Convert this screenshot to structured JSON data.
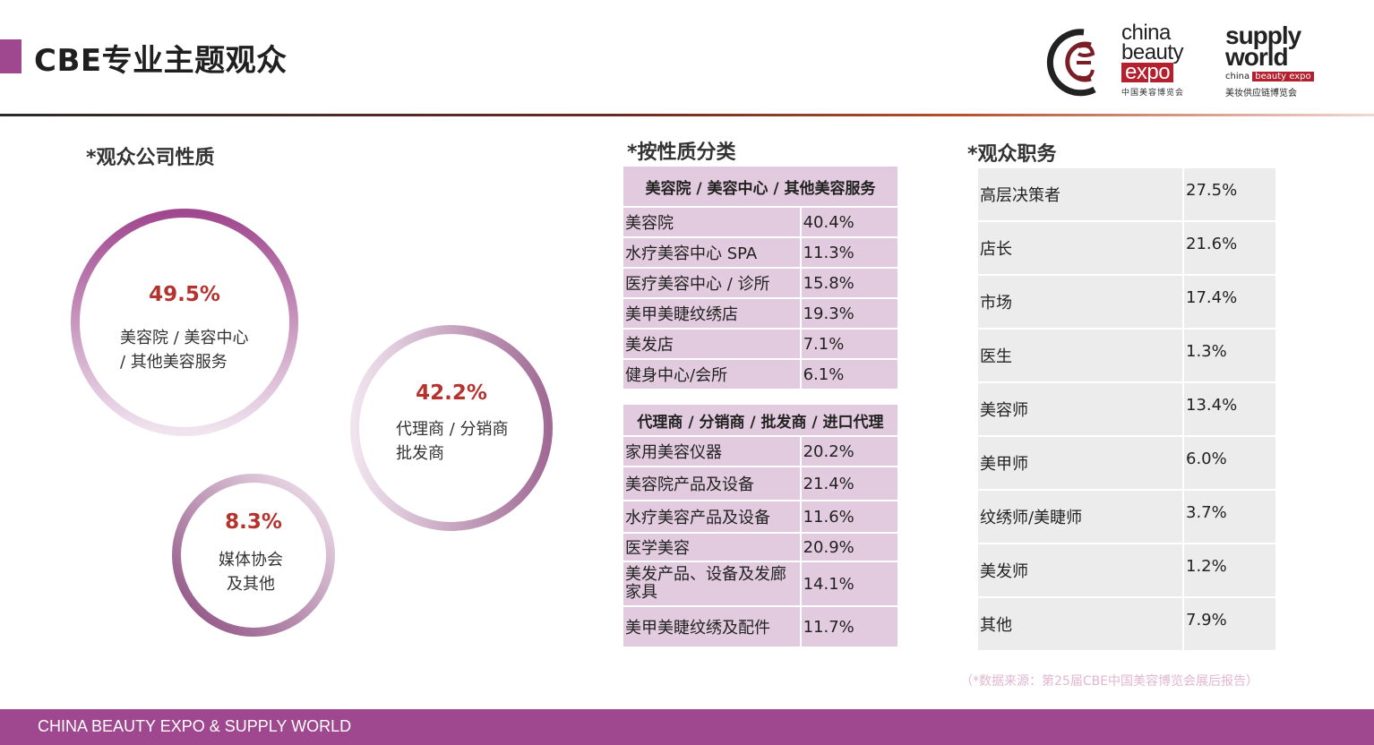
{
  "header": {
    "title": "CBE专业主题观众"
  },
  "logos": {
    "cbe": {
      "line1": "china",
      "line2": "beauty",
      "line3": "expo",
      "cn": "中国美容博览会"
    },
    "supply_world": {
      "line1": "supply",
      "line2": "world",
      "sub_plain": "china ",
      "sub_boxed": "beauty expo",
      "cn": "美妆供应链博览会"
    }
  },
  "company_nature": {
    "heading": "*观众公司性质",
    "items": [
      {
        "percent": "49.5%",
        "label_line1": "美容院 / 美容中心",
        "label_line2": "/ 其他美容服务",
        "value": 49.5
      },
      {
        "percent": "42.2%",
        "label_line1": "代理商 / 分销商",
        "label_line2": "批发商",
        "value": 42.2
      },
      {
        "percent": "8.3%",
        "label_line1": "媒体协会",
        "label_line2": "及其他",
        "value": 8.3
      }
    ]
  },
  "by_nature": {
    "heading": "*按性质分类",
    "group1": {
      "title": "美容院 / 美容中心 / 其他美容服务",
      "rows": [
        {
          "name": "美容院",
          "value": "40.4%"
        },
        {
          "name": "水疗美容中心 SPA",
          "value": "11.3%"
        },
        {
          "name": "医疗美容中心 / 诊所",
          "value": "15.8%"
        },
        {
          "name": "美甲美睫纹绣店",
          "value": "19.3%"
        },
        {
          "name": "美发店",
          "value": "7.1%"
        },
        {
          "name": "健身中心/会所",
          "value": "6.1%"
        }
      ]
    },
    "group2": {
      "title": "代理商 / 分销商 / 批发商 / 进口代理",
      "rows": [
        {
          "name": "家用美容仪器",
          "value": "20.2%"
        },
        {
          "name": "美容院产品及设备",
          "value": "21.4%"
        },
        {
          "name": "水疗美容产品及设备",
          "value": "11.6%"
        },
        {
          "name": "医学美容",
          "value": "20.9%"
        },
        {
          "name": "美发产品、设备及发廊",
          "name2": "家具",
          "value": "14.1%"
        },
        {
          "name": "美甲美睫纹绣及配件",
          "value": "11.7%"
        }
      ]
    }
  },
  "job_roles": {
    "heading": "*观众职务",
    "rows": [
      {
        "name": "高层决策者",
        "value": "27.5%"
      },
      {
        "name": "店长",
        "value": "21.6%"
      },
      {
        "name": "市场",
        "value": "17.4%"
      },
      {
        "name": "医生",
        "value": "1.3%"
      },
      {
        "name": "美容师",
        "value": "13.4%"
      },
      {
        "name": "美甲师",
        "value": "6.0%"
      },
      {
        "name": "纹绣师/美睫师",
        "value": "3.7%"
      },
      {
        "name": "美发师",
        "value": "1.2%"
      },
      {
        "name": "其他",
        "value": "7.9%"
      }
    ]
  },
  "source_note": "（*数据来源：第25届CBE中国美容博览会展后报告）",
  "footer": {
    "text": "CHINA BEAUTY EXPO & SUPPLY  WORLD"
  },
  "colors": {
    "accent": "#a0488f",
    "percent": "#b5332e",
    "table_pink": "#e3cbdf",
    "table_grey": "#ececec"
  }
}
